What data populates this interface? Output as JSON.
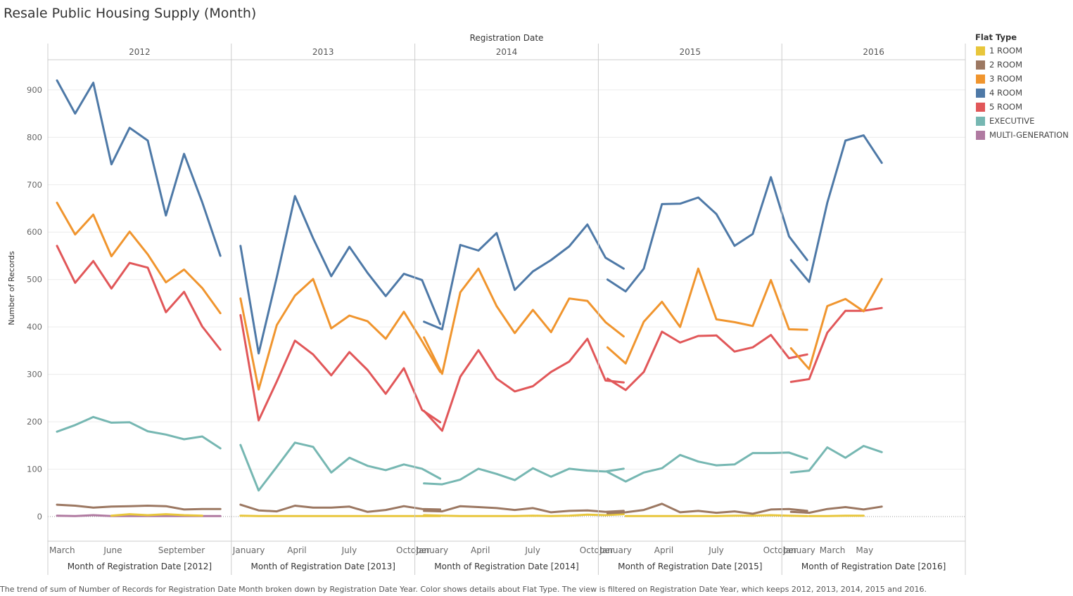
{
  "title": "Resale Public Housing Supply (Month)",
  "caption": "The trend of sum of Number of Records for Registration Date Month broken down by Registration Date Year.  Color shows details about Flat Type. The view is filtered on Registration Date Year, which keeps 2012, 2013, 2014, 2015 and 2016.",
  "legend": {
    "title": "Flat Type",
    "placement": "right",
    "items": [
      {
        "label": "1 ROOM",
        "color": "#e8c63b"
      },
      {
        "label": "2 ROOM",
        "color": "#9c7862"
      },
      {
        "label": "3 ROOM",
        "color": "#f0952e"
      },
      {
        "label": "4 ROOM",
        "color": "#4e79a7"
      },
      {
        "label": "5 ROOM",
        "color": "#e15759"
      },
      {
        "label": "EXECUTIVE",
        "color": "#76b7b2"
      },
      {
        "label": "MULTI-GENERATION",
        "color": "#b07aa1"
      }
    ]
  },
  "chart_data": {
    "type": "line",
    "column_header": "Registration Date",
    "ylabel": "Number of Records",
    "ylim": [
      -70,
      960
    ],
    "yticks": [
      0,
      100,
      200,
      300,
      400,
      500,
      600,
      700,
      800,
      900
    ],
    "grid": true,
    "panels": [
      {
        "year": "2012",
        "xlabel": "Month of Registration Date [2012]",
        "months": [
          3,
          4,
          5,
          6,
          7,
          8,
          9,
          10,
          11,
          12
        ],
        "tick_labels": [
          {
            "month": 3,
            "label": "March"
          },
          {
            "month": 6,
            "label": "June"
          },
          {
            "month": 9,
            "label": "September"
          }
        ],
        "series": [
          {
            "name": "4 ROOM",
            "values": [
              920,
              850,
              915,
              743,
              820,
              793,
              635,
              765,
              663,
              550
            ]
          },
          {
            "name": "3 ROOM",
            "values": [
              662,
              595,
              637,
              549,
              601,
              553,
              494,
              521,
              482,
              429
            ]
          },
          {
            "name": "5 ROOM",
            "values": [
              571,
              493,
              539,
              481,
              535,
              525,
              431,
              474,
              401,
              352
            ]
          },
          {
            "name": "EXECUTIVE",
            "values": [
              179,
              193,
              210,
              198,
              199,
              180,
              173,
              163,
              169,
              144
            ]
          },
          {
            "name": "2 ROOM",
            "values": [
              25,
              23,
              19,
              21,
              22,
              23,
              22,
              15,
              16,
              16
            ]
          },
          {
            "name": "1 ROOM",
            "months": [
              6,
              7,
              8,
              9,
              10,
              11
            ],
            "values": [
              2,
              5,
              3,
              5,
              3,
              2
            ]
          },
          {
            "name": "MULTI-GENERATION",
            "values": [
              2,
              1,
              3,
              1,
              1,
              1,
              1,
              1,
              1,
              1
            ]
          }
        ]
      },
      {
        "year": "2013",
        "xlabel": "Month of Registration Date [2013]",
        "months": [
          1,
          2,
          3,
          4,
          5,
          6,
          7,
          8,
          9,
          10,
          11,
          12
        ],
        "tick_labels": [
          {
            "month": 1,
            "label": "January"
          },
          {
            "month": 4,
            "label": "April"
          },
          {
            "month": 7,
            "label": "July"
          },
          {
            "month": 10,
            "label": "October"
          }
        ],
        "series": [
          {
            "name": "4 ROOM",
            "values": [
              571,
              344,
              505,
              676,
              587,
              507,
              569,
              514,
              465,
              512,
              499,
              406
            ]
          },
          {
            "name": "3 ROOM",
            "values": [
              460,
              268,
              404,
              466,
              501,
              397,
              424,
              412,
              375,
              432,
              370,
              305
            ]
          },
          {
            "name": "5 ROOM",
            "values": [
              425,
              203,
              285,
              371,
              342,
              298,
              347,
              309,
              259,
              313,
              225,
              199
            ]
          },
          {
            "name": "EXECUTIVE",
            "values": [
              151,
              55,
              105,
              156,
              147,
              93,
              124,
              107,
              98,
              110,
              101,
              80
            ]
          },
          {
            "name": "2 ROOM",
            "values": [
              25,
              13,
              11,
              23,
              19,
              19,
              21,
              10,
              14,
              22,
              16,
              15
            ]
          },
          {
            "name": "1 ROOM",
            "months": [
              1,
              2,
              3,
              4,
              5,
              6,
              7,
              8,
              9,
              10,
              11,
              12
            ],
            "values": [
              2,
              1,
              1,
              1,
              1,
              1,
              1,
              1,
              1,
              1,
              1,
              1
            ]
          }
        ]
      },
      {
        "year": "2014",
        "xlabel": "Month of Registration Date [2014]",
        "months": [
          1,
          2,
          3,
          4,
          5,
          6,
          7,
          8,
          9,
          10,
          11,
          12
        ],
        "tick_labels": [
          {
            "month": 1,
            "label": "January"
          },
          {
            "month": 4,
            "label": "April"
          },
          {
            "month": 7,
            "label": "July"
          },
          {
            "month": 10,
            "label": "October"
          }
        ],
        "series": [
          {
            "name": "4 ROOM",
            "values": [
              411,
              395,
              573,
              561,
              598,
              478,
              517,
              541,
              570,
              616,
              546,
              523
            ]
          },
          {
            "name": "3 ROOM",
            "values": [
              378,
              301,
              473,
              523,
              444,
              387,
              436,
              389,
              460,
              455,
              410,
              380
            ]
          },
          {
            "name": "5 ROOM",
            "values": [
              223,
              181,
              295,
              351,
              291,
              264,
              275,
              305,
              327,
              375,
              287,
              283
            ]
          },
          {
            "name": "EXECUTIVE",
            "values": [
              70,
              68,
              78,
              101,
              90,
              77,
              102,
              84,
              101,
              97,
              95,
              101
            ]
          },
          {
            "name": "2 ROOM",
            "values": [
              12,
              11,
              22,
              20,
              18,
              14,
              18,
              9,
              12,
              13,
              10,
              12
            ]
          },
          {
            "name": "1 ROOM",
            "months": [
              1,
              2,
              3,
              4,
              5,
              6,
              7,
              8,
              9,
              10,
              11,
              12
            ],
            "values": [
              3,
              2,
              1,
              1,
              1,
              1,
              2,
              1,
              2,
              4,
              3,
              5
            ]
          }
        ]
      },
      {
        "year": "2015",
        "xlabel": "Month of Registration Date [2015]",
        "months": [
          1,
          2,
          3,
          4,
          5,
          6,
          7,
          8,
          9,
          10,
          11,
          12
        ],
        "tick_labels": [
          {
            "month": 1,
            "label": "January"
          },
          {
            "month": 4,
            "label": "April"
          },
          {
            "month": 7,
            "label": "July"
          },
          {
            "month": 10,
            "label": "October"
          }
        ],
        "series": [
          {
            "name": "4 ROOM",
            "values": [
              500,
              475,
              523,
              659,
              660,
              673,
              638,
              571,
              596,
              716,
              591,
              541
            ]
          },
          {
            "name": "3 ROOM",
            "values": [
              357,
              323,
              411,
              453,
              400,
              523,
              416,
              410,
              402,
              499,
              395,
              394
            ]
          },
          {
            "name": "5 ROOM",
            "values": [
              291,
              267,
              305,
              390,
              367,
              381,
              382,
              348,
              357,
              383,
              334,
              342
            ]
          },
          {
            "name": "EXECUTIVE",
            "values": [
              94,
              74,
              93,
              102,
              130,
              116,
              108,
              110,
              134,
              134,
              135,
              122
            ]
          },
          {
            "name": "2 ROOM",
            "values": [
              7,
              9,
              14,
              27,
              9,
              12,
              8,
              11,
              6,
              15,
              16,
              12
            ]
          },
          {
            "name": "1 ROOM",
            "months": [
              2,
              3,
              4,
              5,
              6,
              7,
              8,
              9,
              10,
              11,
              12
            ],
            "values": [
              1,
              1,
              1,
              1,
              1,
              1,
              2,
              2,
              3,
              2,
              1
            ]
          }
        ]
      },
      {
        "year": "2016",
        "xlabel": "Month of Registration Date [2016]",
        "months": [
          1,
          2,
          3,
          4,
          5,
          6
        ],
        "tick_labels": [
          {
            "month": 1,
            "label": "January"
          },
          {
            "month": 3,
            "label": "March"
          },
          {
            "month": 5,
            "label": "May"
          }
        ],
        "series": [
          {
            "name": "4 ROOM",
            "values": [
              541,
              495,
              662,
              793,
              804,
              746
            ]
          },
          {
            "name": "3 ROOM",
            "values": [
              355,
              311,
              444,
              459,
              433,
              501
            ]
          },
          {
            "name": "5 ROOM",
            "values": [
              284,
              290,
              388,
              434,
              434,
              440
            ]
          },
          {
            "name": "EXECUTIVE",
            "values": [
              93,
              97,
              146,
              124,
              149,
              136
            ]
          },
          {
            "name": "2 ROOM",
            "values": [
              10,
              8,
              16,
              20,
              15,
              21
            ]
          },
          {
            "name": "1 ROOM",
            "months": [
              2,
              3,
              4,
              5
            ],
            "values": [
              1,
              1,
              2,
              2
            ]
          }
        ]
      }
    ]
  }
}
